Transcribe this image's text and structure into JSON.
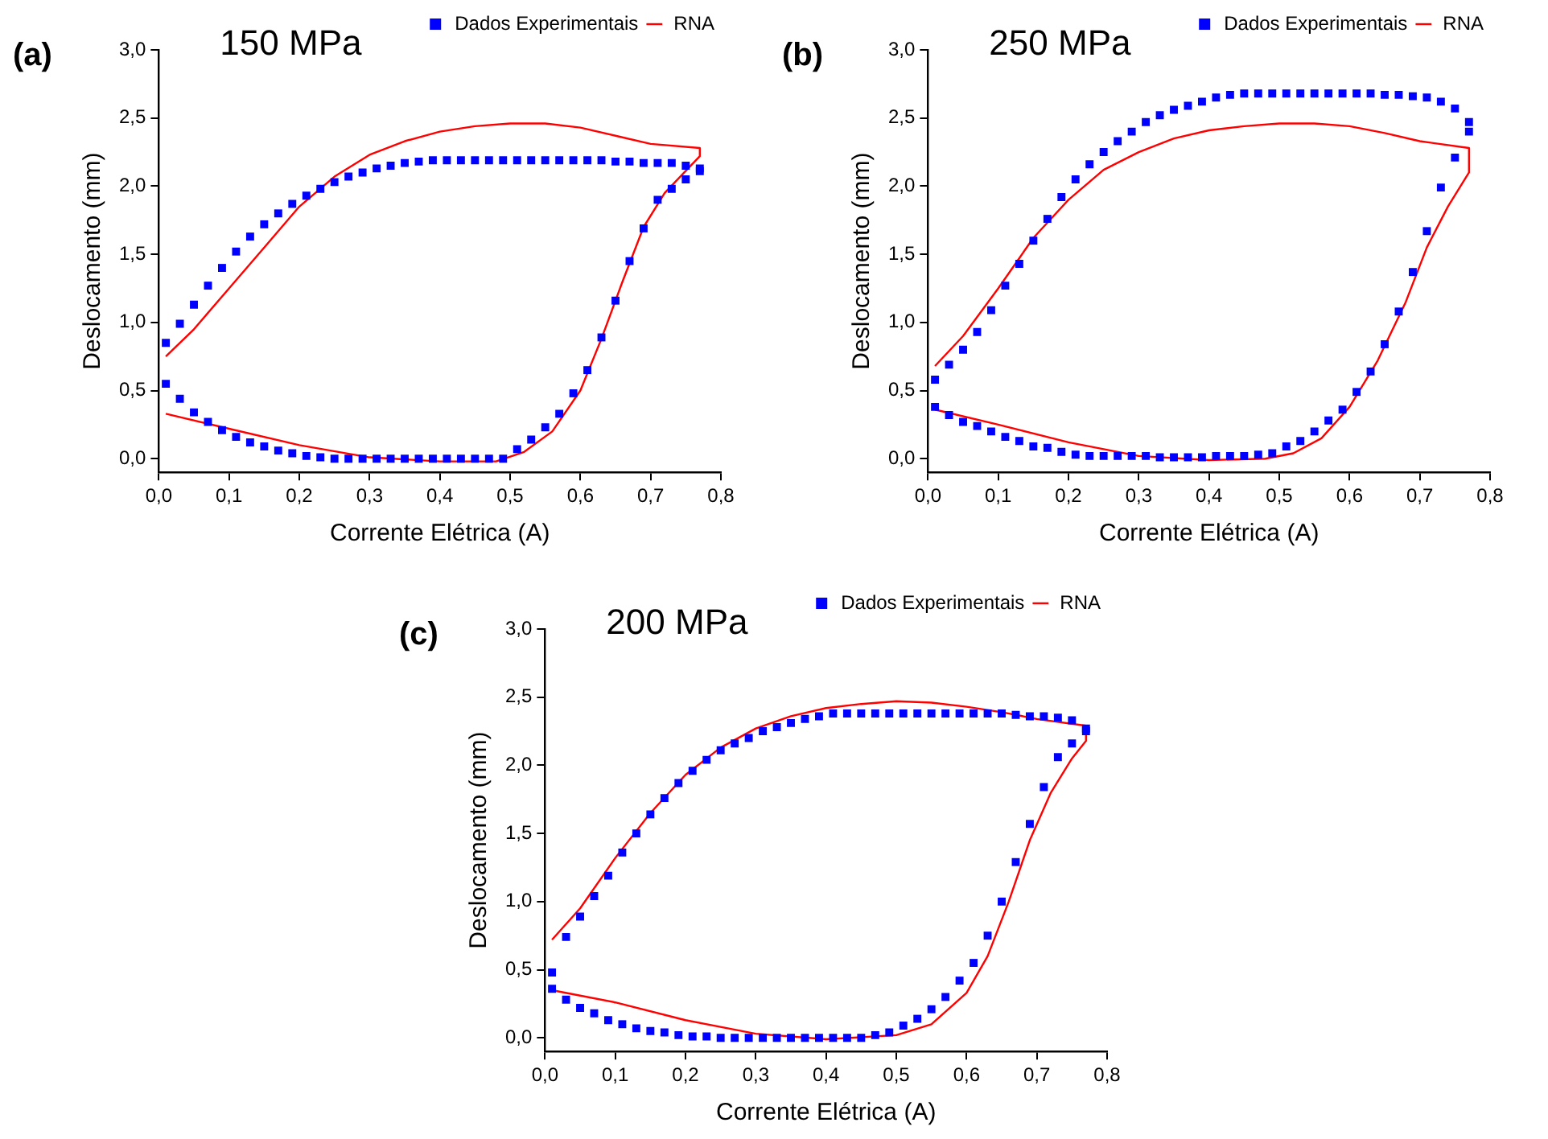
{
  "chart_data": [
    {
      "type": "scatter",
      "title": "150 MPa",
      "annotations": [
        "(a)"
      ],
      "xlabel": "Corrente Elétrica (A)",
      "ylabel": "Deslocamento (mm)",
      "xlim": [
        0,
        0.8
      ],
      "ylim": [
        -0.1,
        3.0
      ],
      "xticks": [
        {
          "value": 0,
          "label": "0,0"
        },
        {
          "value": 0.1,
          "label": "0,1"
        },
        {
          "value": 0.2,
          "label": "0,2"
        },
        {
          "value": 0.3,
          "label": "0,3"
        },
        {
          "value": 0.4,
          "label": "0,4"
        },
        {
          "value": 0.5,
          "label": "0,5"
        },
        {
          "value": 0.6,
          "label": "0,6"
        },
        {
          "value": 0.7,
          "label": "0,7"
        },
        {
          "value": 0.8,
          "label": "0,8"
        }
      ],
      "yticks": [
        {
          "value": 0,
          "label": "0,0"
        },
        {
          "value": 0.5,
          "label": "0,5"
        },
        {
          "value": 1,
          "label": "1,0"
        },
        {
          "value": 1.5,
          "label": "1,5"
        },
        {
          "value": 2,
          "label": "2,0"
        },
        {
          "value": 2.5,
          "label": "2,5"
        },
        {
          "value": 3,
          "label": "3,0"
        }
      ],
      "legend": "top right",
      "series": [
        {
          "name": "Dados Experimentais",
          "type": "scatter",
          "marker": "square",
          "color": "#0000ff",
          "x": [
            0.01,
            0.03,
            0.05,
            0.07,
            0.09,
            0.11,
            0.13,
            0.15,
            0.17,
            0.19,
            0.21,
            0.23,
            0.25,
            0.27,
            0.29,
            0.31,
            0.33,
            0.35,
            0.37,
            0.39,
            0.41,
            0.43,
            0.45,
            0.47,
            0.49,
            0.51,
            0.53,
            0.55,
            0.57,
            0.59,
            0.61,
            0.63,
            0.65,
            0.67,
            0.69,
            0.71,
            0.73,
            0.75,
            0.77,
            0.01,
            0.03,
            0.05,
            0.07,
            0.09,
            0.11,
            0.13,
            0.15,
            0.17,
            0.19,
            0.21,
            0.23,
            0.25,
            0.27,
            0.29,
            0.31,
            0.33,
            0.35,
            0.37,
            0.39,
            0.41,
            0.43,
            0.45,
            0.47,
            0.49,
            0.51,
            0.53,
            0.55,
            0.57,
            0.59,
            0.61,
            0.63,
            0.65,
            0.67,
            0.69,
            0.71,
            0.73,
            0.75,
            0.77
          ],
          "values": [
            0.85,
            0.99,
            1.13,
            1.27,
            1.4,
            1.52,
            1.63,
            1.72,
            1.8,
            1.87,
            1.93,
            1.98,
            2.03,
            2.07,
            2.1,
            2.13,
            2.15,
            2.17,
            2.18,
            2.19,
            2.19,
            2.19,
            2.19,
            2.19,
            2.19,
            2.19,
            2.19,
            2.19,
            2.19,
            2.19,
            2.19,
            2.19,
            2.18,
            2.18,
            2.17,
            2.17,
            2.17,
            2.15,
            2.11,
            0.55,
            0.44,
            0.34,
            0.27,
            0.21,
            0.16,
            0.12,
            0.09,
            0.06,
            0.04,
            0.02,
            0.01,
            0,
            0,
            0,
            0,
            0,
            0,
            0,
            0,
            0,
            0,
            0,
            0,
            0,
            0.07,
            0.14,
            0.23,
            0.33,
            0.48,
            0.65,
            0.89,
            1.16,
            1.45,
            1.69,
            1.9,
            1.98,
            2.05,
            2.13
          ]
        },
        {
          "name": "RNA",
          "type": "line",
          "marker": "none",
          "line_style": "solid",
          "color": "#ff0000",
          "x": [
            0.01,
            0.1,
            0.2,
            0.3,
            0.4,
            0.48,
            0.52,
            0.56,
            0.6,
            0.63,
            0.66,
            0.69,
            0.72,
            0.77,
            0.77,
            0.7,
            0.65,
            0.6,
            0.55,
            0.5,
            0.45,
            0.4,
            0.35,
            0.3,
            0.25,
            0.2,
            0.15,
            0.1,
            0.05,
            0.01
          ],
          "values": [
            0.33,
            0.22,
            0.1,
            0.01,
            -0.02,
            -0.02,
            0.05,
            0.2,
            0.5,
            0.88,
            1.3,
            1.7,
            1.95,
            2.22,
            2.28,
            2.31,
            2.37,
            2.43,
            2.46,
            2.46,
            2.44,
            2.4,
            2.33,
            2.23,
            2.07,
            1.85,
            1.55,
            1.25,
            0.95,
            0.75
          ]
        }
      ]
    },
    {
      "type": "scatter",
      "title": "250 MPa",
      "annotations": [
        "(b)"
      ],
      "xlabel": "Corrente Elétrica (A)",
      "ylabel": "Deslocamento (mm)",
      "xlim": [
        0,
        0.8
      ],
      "ylim": [
        -0.1,
        3.0
      ],
      "xticks": [
        {
          "value": 0,
          "label": "0,0"
        },
        {
          "value": 0.1,
          "label": "0,1"
        },
        {
          "value": 0.2,
          "label": "0,2"
        },
        {
          "value": 0.3,
          "label": "0,3"
        },
        {
          "value": 0.4,
          "label": "0,4"
        },
        {
          "value": 0.5,
          "label": "0,5"
        },
        {
          "value": 0.6,
          "label": "0,6"
        },
        {
          "value": 0.7,
          "label": "0,7"
        },
        {
          "value": 0.8,
          "label": "0,8"
        }
      ],
      "yticks": [
        {
          "value": 0,
          "label": "0,0"
        },
        {
          "value": 0.5,
          "label": "0,5"
        },
        {
          "value": 1,
          "label": "1,0"
        },
        {
          "value": 1.5,
          "label": "1,5"
        },
        {
          "value": 2,
          "label": "2,0"
        },
        {
          "value": 2.5,
          "label": "2,5"
        },
        {
          "value": 3,
          "label": "3,0"
        }
      ],
      "legend": "top right",
      "series": [
        {
          "name": "Dados Experimentais",
          "type": "scatter",
          "marker": "square",
          "color": "#0000ff",
          "x": [
            0.01,
            0.03,
            0.05,
            0.07,
            0.09,
            0.11,
            0.13,
            0.15,
            0.17,
            0.19,
            0.21,
            0.23,
            0.25,
            0.27,
            0.29,
            0.31,
            0.33,
            0.35,
            0.37,
            0.39,
            0.41,
            0.43,
            0.45,
            0.47,
            0.49,
            0.51,
            0.53,
            0.55,
            0.57,
            0.59,
            0.61,
            0.63,
            0.65,
            0.67,
            0.69,
            0.71,
            0.73,
            0.75,
            0.77,
            0.01,
            0.03,
            0.05,
            0.07,
            0.09,
            0.11,
            0.13,
            0.15,
            0.17,
            0.19,
            0.21,
            0.23,
            0.25,
            0.27,
            0.29,
            0.31,
            0.33,
            0.35,
            0.37,
            0.39,
            0.41,
            0.43,
            0.45,
            0.47,
            0.49,
            0.51,
            0.53,
            0.55,
            0.57,
            0.59,
            0.61,
            0.63,
            0.65,
            0.67,
            0.69,
            0.71,
            0.73,
            0.75,
            0.77
          ],
          "values": [
            0.58,
            0.69,
            0.8,
            0.93,
            1.09,
            1.27,
            1.43,
            1.6,
            1.76,
            1.92,
            2.05,
            2.16,
            2.25,
            2.33,
            2.4,
            2.47,
            2.52,
            2.56,
            2.59,
            2.62,
            2.65,
            2.67,
            2.68,
            2.68,
            2.68,
            2.68,
            2.68,
            2.68,
            2.68,
            2.68,
            2.68,
            2.68,
            2.67,
            2.67,
            2.66,
            2.65,
            2.62,
            2.57,
            2.47,
            0.38,
            0.32,
            0.27,
            0.24,
            0.2,
            0.16,
            0.13,
            0.09,
            0.08,
            0.05,
            0.03,
            0.02,
            0.02,
            0.02,
            0.02,
            0.02,
            0.01,
            0.01,
            0.01,
            0.01,
            0.02,
            0.02,
            0.02,
            0.03,
            0.04,
            0.09,
            0.13,
            0.2,
            0.28,
            0.36,
            0.49,
            0.64,
            0.84,
            1.08,
            1.37,
            1.67,
            1.99,
            2.21,
            2.4
          ]
        },
        {
          "name": "RNA",
          "type": "line",
          "marker": "none",
          "line_style": "solid",
          "color": "#ff0000",
          "x": [
            0.01,
            0.1,
            0.2,
            0.3,
            0.4,
            0.48,
            0.52,
            0.56,
            0.6,
            0.64,
            0.68,
            0.71,
            0.74,
            0.77,
            0.77,
            0.7,
            0.65,
            0.6,
            0.55,
            0.5,
            0.45,
            0.4,
            0.35,
            0.3,
            0.25,
            0.2,
            0.15,
            0.1,
            0.05,
            0.01
          ],
          "values": [
            0.36,
            0.25,
            0.12,
            0.02,
            -0.01,
            0,
            0.04,
            0.15,
            0.38,
            0.72,
            1.15,
            1.55,
            1.85,
            2.1,
            2.28,
            2.33,
            2.39,
            2.44,
            2.46,
            2.46,
            2.44,
            2.41,
            2.35,
            2.25,
            2.12,
            1.9,
            1.62,
            1.25,
            0.9,
            0.68
          ]
        }
      ]
    },
    {
      "type": "scatter",
      "title": "200 MPa",
      "annotations": [
        "(c)"
      ],
      "xlabel": "Corrente Elétrica (A)",
      "ylabel": "Deslocamento (mm)",
      "xlim": [
        0,
        0.8
      ],
      "ylim": [
        -0.1,
        3.0
      ],
      "xticks": [
        {
          "value": 0,
          "label": "0,0"
        },
        {
          "value": 0.1,
          "label": "0,1"
        },
        {
          "value": 0.2,
          "label": "0,2"
        },
        {
          "value": 0.3,
          "label": "0,3"
        },
        {
          "value": 0.4,
          "label": "0,4"
        },
        {
          "value": 0.5,
          "label": "0,5"
        },
        {
          "value": 0.6,
          "label": "0,6"
        },
        {
          "value": 0.7,
          "label": "0,7"
        },
        {
          "value": 0.8,
          "label": "0,8"
        }
      ],
      "yticks": [
        {
          "value": 0,
          "label": "0,0"
        },
        {
          "value": 0.5,
          "label": "0,5"
        },
        {
          "value": 1,
          "label": "1,0"
        },
        {
          "value": 1.5,
          "label": "1,5"
        },
        {
          "value": 2,
          "label": "2,0"
        },
        {
          "value": 2.5,
          "label": "2,5"
        },
        {
          "value": 3,
          "label": "3,0"
        }
      ],
      "legend": "top right",
      "series": [
        {
          "name": "Dados Experimentais",
          "type": "scatter",
          "marker": "square",
          "color": "#0000ff",
          "x": [
            0.01,
            0.03,
            0.05,
            0.07,
            0.09,
            0.11,
            0.13,
            0.15,
            0.17,
            0.19,
            0.21,
            0.23,
            0.25,
            0.27,
            0.29,
            0.31,
            0.33,
            0.35,
            0.37,
            0.39,
            0.41,
            0.43,
            0.45,
            0.47,
            0.49,
            0.51,
            0.53,
            0.55,
            0.57,
            0.59,
            0.61,
            0.63,
            0.65,
            0.67,
            0.69,
            0.71,
            0.73,
            0.75,
            0.77,
            0.01,
            0.03,
            0.05,
            0.07,
            0.09,
            0.11,
            0.13,
            0.15,
            0.17,
            0.19,
            0.21,
            0.23,
            0.25,
            0.27,
            0.29,
            0.31,
            0.33,
            0.35,
            0.37,
            0.39,
            0.41,
            0.43,
            0.45,
            0.47,
            0.49,
            0.51,
            0.53,
            0.55,
            0.57,
            0.59,
            0.61,
            0.63,
            0.65,
            0.67,
            0.69,
            0.71,
            0.73,
            0.75,
            0.77
          ],
          "values": [
            0.48,
            0.74,
            0.89,
            1.04,
            1.19,
            1.36,
            1.5,
            1.64,
            1.76,
            1.87,
            1.96,
            2.04,
            2.11,
            2.16,
            2.2,
            2.25,
            2.28,
            2.31,
            2.34,
            2.36,
            2.38,
            2.38,
            2.38,
            2.38,
            2.38,
            2.38,
            2.38,
            2.38,
            2.38,
            2.38,
            2.38,
            2.38,
            2.38,
            2.37,
            2.36,
            2.36,
            2.35,
            2.33,
            2.27,
            0.36,
            0.28,
            0.22,
            0.18,
            0.13,
            0.1,
            0.07,
            0.05,
            0.04,
            0.02,
            0.01,
            0.01,
            0,
            0,
            0,
            0,
            0,
            0,
            0,
            0,
            0,
            0,
            0,
            0.02,
            0.04,
            0.09,
            0.14,
            0.21,
            0.3,
            0.42,
            0.55,
            0.75,
            1.0,
            1.29,
            1.57,
            1.84,
            2.06,
            2.16,
            2.25
          ]
        },
        {
          "name": "RNA",
          "type": "line",
          "marker": "none",
          "line_style": "solid",
          "color": "#ff0000",
          "x": [
            0.01,
            0.1,
            0.2,
            0.3,
            0.4,
            0.5,
            0.55,
            0.6,
            0.63,
            0.66,
            0.69,
            0.72,
            0.75,
            0.77,
            0.77,
            0.7,
            0.65,
            0.6,
            0.55,
            0.5,
            0.45,
            0.4,
            0.35,
            0.3,
            0.25,
            0.2,
            0.15,
            0.1,
            0.05,
            0.01
          ],
          "values": [
            0.35,
            0.26,
            0.13,
            0.03,
            -0.01,
            0.02,
            0.1,
            0.33,
            0.6,
            1.0,
            1.45,
            1.8,
            2.05,
            2.18,
            2.29,
            2.34,
            2.39,
            2.43,
            2.46,
            2.47,
            2.45,
            2.42,
            2.36,
            2.27,
            2.13,
            1.93,
            1.65,
            1.32,
            0.95,
            0.72
          ]
        }
      ]
    }
  ]
}
